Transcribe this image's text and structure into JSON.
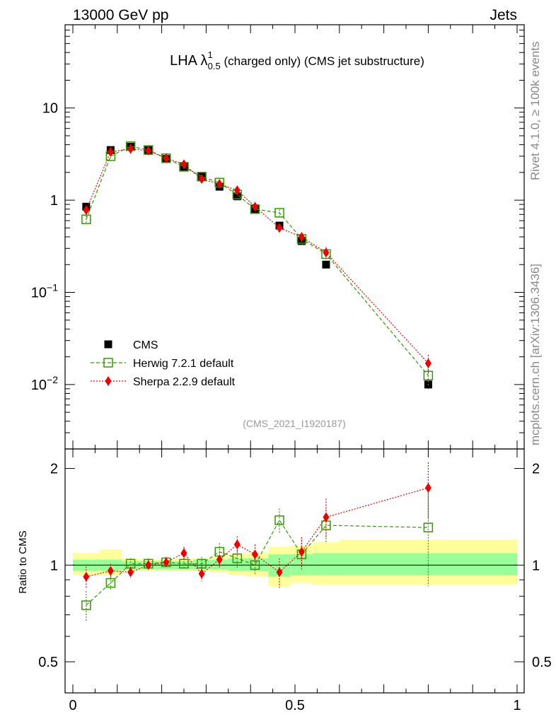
{
  "header": {
    "left": "13000 GeV pp",
    "right": "Jets"
  },
  "side_text": {
    "top": "Rivet 4.1.0, ≥ 100k events",
    "bottom": "mcplots.cern.ch [arXiv:1306.3436]"
  },
  "chart_data": {
    "type": "scatter",
    "title": {
      "main": "LHA λ",
      "sup": "1",
      "sub": "0.5",
      "rest": " (charged only) (CMS jet substructure)"
    },
    "watermark": "(CMS_2021_I1920187)",
    "xlim": [
      0,
      1
    ],
    "ylim": [
      0.002,
      80
    ],
    "ylog": true,
    "x_ticks": [
      {
        "v": 0,
        "label": "0"
      },
      {
        "v": 0.5,
        "label": "0.5"
      },
      {
        "v": 1,
        "label": "1"
      }
    ],
    "y_ticks_main": [
      {
        "v": 10,
        "label": "10",
        "exp": ""
      },
      {
        "v": 1,
        "label": "1",
        "exp": ""
      },
      {
        "v": 0.1,
        "label": "10",
        "exp": "−1"
      },
      {
        "v": 0.01,
        "label": "10",
        "exp": "−2"
      }
    ],
    "ratio": {
      "ylabel": "Ratio to CMS",
      "ylim": [
        0.4,
        2.3
      ],
      "ticks": [
        {
          "v": 0.5,
          "label": "0.5"
        },
        {
          "v": 1,
          "label": "1"
        },
        {
          "v": 2,
          "label": "2"
        }
      ],
      "band_green": [
        {
          "x0": 0.0,
          "x1": 0.06,
          "lo": 0.96,
          "hi": 1.04
        },
        {
          "x0": 0.06,
          "x1": 0.11,
          "lo": 0.96,
          "hi": 1.04
        },
        {
          "x0": 0.11,
          "x1": 0.15,
          "lo": 0.97,
          "hi": 1.03
        },
        {
          "x0": 0.15,
          "x1": 0.19,
          "lo": 0.97,
          "hi": 1.03
        },
        {
          "x0": 0.19,
          "x1": 0.23,
          "lo": 0.97,
          "hi": 1.03
        },
        {
          "x0": 0.23,
          "x1": 0.27,
          "lo": 0.97,
          "hi": 1.03
        },
        {
          "x0": 0.27,
          "x1": 0.31,
          "lo": 0.97,
          "hi": 1.04
        },
        {
          "x0": 0.31,
          "x1": 0.35,
          "lo": 0.97,
          "hi": 1.04
        },
        {
          "x0": 0.35,
          "x1": 0.39,
          "lo": 0.96,
          "hi": 1.05
        },
        {
          "x0": 0.39,
          "x1": 0.44,
          "lo": 0.96,
          "hi": 1.05
        },
        {
          "x0": 0.44,
          "x1": 0.49,
          "lo": 0.92,
          "hi": 1.08
        },
        {
          "x0": 0.49,
          "x1": 0.54,
          "lo": 0.93,
          "hi": 1.08
        },
        {
          "x0": 0.54,
          "x1": 0.6,
          "lo": 0.93,
          "hi": 1.09
        },
        {
          "x0": 0.6,
          "x1": 1.0,
          "lo": 0.93,
          "hi": 1.09
        }
      ],
      "band_yellow": [
        {
          "x0": 0.0,
          "x1": 0.06,
          "lo": 0.93,
          "hi": 1.09
        },
        {
          "x0": 0.06,
          "x1": 0.11,
          "lo": 0.93,
          "hi": 1.12
        },
        {
          "x0": 0.11,
          "x1": 0.15,
          "lo": 0.96,
          "hi": 1.05
        },
        {
          "x0": 0.15,
          "x1": 0.19,
          "lo": 0.96,
          "hi": 1.04
        },
        {
          "x0": 0.19,
          "x1": 0.23,
          "lo": 0.96,
          "hi": 1.04
        },
        {
          "x0": 0.23,
          "x1": 0.27,
          "lo": 0.96,
          "hi": 1.05
        },
        {
          "x0": 0.27,
          "x1": 0.31,
          "lo": 0.96,
          "hi": 1.05
        },
        {
          "x0": 0.31,
          "x1": 0.35,
          "lo": 0.95,
          "hi": 1.06
        },
        {
          "x0": 0.35,
          "x1": 0.39,
          "lo": 0.93,
          "hi": 1.08
        },
        {
          "x0": 0.39,
          "x1": 0.44,
          "lo": 0.92,
          "hi": 1.09
        },
        {
          "x0": 0.44,
          "x1": 0.49,
          "lo": 0.86,
          "hi": 1.14
        },
        {
          "x0": 0.49,
          "x1": 0.54,
          "lo": 0.88,
          "hi": 1.15
        },
        {
          "x0": 0.54,
          "x1": 0.6,
          "lo": 0.87,
          "hi": 1.18
        },
        {
          "x0": 0.6,
          "x1": 1.0,
          "lo": 0.87,
          "hi": 1.2
        }
      ]
    },
    "series": [
      {
        "name": "CMS",
        "style": "data",
        "color": "#000000",
        "x": [
          0.03,
          0.085,
          0.13,
          0.17,
          0.21,
          0.25,
          0.29,
          0.33,
          0.37,
          0.41,
          0.465,
          0.515,
          0.57,
          0.8
        ],
        "y": [
          0.85,
          3.5,
          3.8,
          3.5,
          2.8,
          2.3,
          1.8,
          1.4,
          1.1,
          0.8,
          0.53,
          0.36,
          0.2,
          0.01
        ],
        "err": [
          0.05,
          0.15,
          0.12,
          0.1,
          0.08,
          0.07,
          0.06,
          0.05,
          0.04,
          0.03,
          0.03,
          0.02,
          0.015,
          0.001
        ],
        "ratio": [
          1,
          1,
          1,
          1,
          1,
          1,
          1,
          1,
          1,
          1,
          1,
          1,
          1,
          1
        ]
      },
      {
        "name": "Herwig 7.2.1 default",
        "style": "herwig",
        "color": "#339900",
        "x": [
          0.03,
          0.085,
          0.13,
          0.17,
          0.21,
          0.25,
          0.29,
          0.33,
          0.37,
          0.41,
          0.465,
          0.515,
          0.57,
          0.8
        ],
        "y": [
          0.62,
          3.0,
          3.85,
          3.5,
          2.85,
          2.3,
          1.8,
          1.55,
          1.15,
          0.8,
          0.73,
          0.38,
          0.26,
          0.0125
        ],
        "err": [
          0.06,
          0.15,
          0.12,
          0.1,
          0.08,
          0.07,
          0.06,
          0.05,
          0.05,
          0.04,
          0.06,
          0.04,
          0.03,
          0.003
        ],
        "ratio": [
          0.75,
          0.88,
          1.01,
          1.01,
          1.02,
          1.01,
          1.01,
          1.1,
          1.05,
          1.0,
          1.38,
          1.08,
          1.33,
          1.31
        ],
        "ratio_err": [
          0.08,
          0.04,
          0.04,
          0.04,
          0.04,
          0.04,
          0.05,
          0.07,
          0.07,
          0.07,
          0.12,
          0.12,
          0.16,
          0.45
        ]
      },
      {
        "name": "Sherpa 2.2.9 default",
        "style": "sherpa",
        "color": "#ee0000",
        "x": [
          0.03,
          0.085,
          0.13,
          0.17,
          0.21,
          0.25,
          0.29,
          0.33,
          0.37,
          0.41,
          0.465,
          0.515,
          0.57,
          0.8
        ],
        "y": [
          0.78,
          3.35,
          3.6,
          3.45,
          2.85,
          2.45,
          1.7,
          1.5,
          1.28,
          0.85,
          0.5,
          0.4,
          0.27,
          0.017
        ],
        "err": [
          0.06,
          0.15,
          0.12,
          0.1,
          0.08,
          0.08,
          0.06,
          0.06,
          0.05,
          0.04,
          0.04,
          0.04,
          0.04,
          0.004
        ],
        "ratio": [
          0.92,
          0.96,
          0.95,
          1.0,
          1.02,
          1.09,
          0.94,
          1.04,
          1.16,
          1.08,
          0.95,
          1.1,
          1.41,
          1.74
        ],
        "ratio_err": [
          0.07,
          0.05,
          0.04,
          0.04,
          0.04,
          0.05,
          0.05,
          0.06,
          0.07,
          0.08,
          0.1,
          0.12,
          0.2,
          0.35
        ]
      }
    ]
  }
}
